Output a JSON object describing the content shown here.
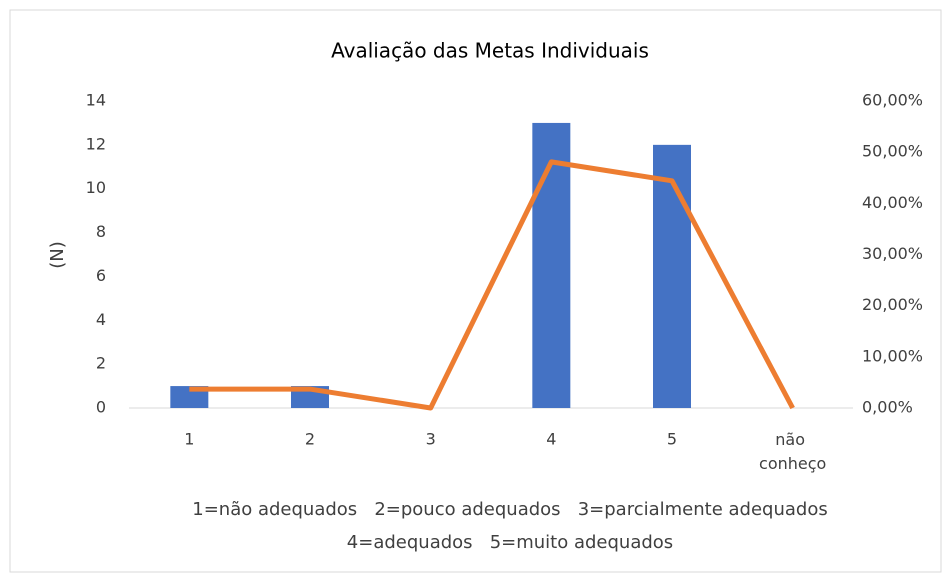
{
  "chart_data": {
    "type": "bar_line",
    "title": "Avaliação das Metas Individuais",
    "y_label": "(N)",
    "categories": [
      "1",
      "2",
      "3",
      "4",
      "5",
      "não conheço"
    ],
    "series": [
      {
        "type": "bar",
        "color": "#4472c4",
        "values": [
          1,
          1,
          0,
          13,
          12,
          0
        ]
      },
      {
        "type": "line",
        "color": "#ed7d31",
        "axis": "y2",
        "values": [
          3.7,
          3.7,
          0,
          48.1,
          44.4,
          0
        ]
      }
    ],
    "ylim": [
      0,
      14
    ],
    "yticks": [
      0,
      2,
      4,
      6,
      8,
      10,
      12,
      14
    ],
    "y2lim": [
      0,
      60
    ],
    "y2ticks": [
      {
        "value": 0,
        "label": "0,00%"
      },
      {
        "value": 10,
        "label": "10,00%"
      },
      {
        "value": 20,
        "label": "20,00%"
      },
      {
        "value": 30,
        "label": "30,00%"
      },
      {
        "value": 40,
        "label": "40,00%"
      },
      {
        "value": 50,
        "label": "50,00%"
      },
      {
        "value": 60,
        "label": "60,00%"
      }
    ],
    "grid": false,
    "notes": [
      "1=não adequados   2=pouco adequados   3=parcialmente adequados",
      "4=adequados   5=muito adequados"
    ]
  }
}
